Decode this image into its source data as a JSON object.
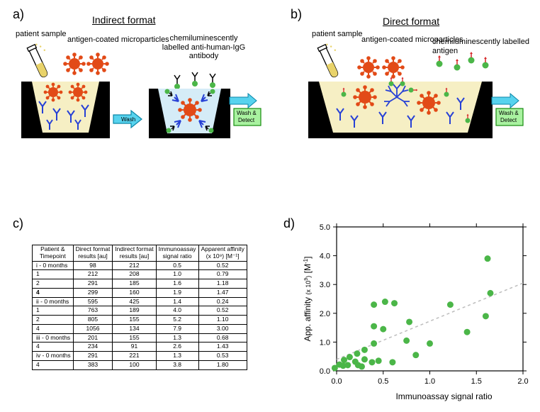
{
  "labels": {
    "a": "a)",
    "b": "b)",
    "c": "c)",
    "d": "d)",
    "indirect_title": "Indirect format",
    "direct_title": "Direct format",
    "patient_sample": "patient\nsample",
    "antigen_mp": "antigen-coated\nmicroparticles",
    "chemi_igg": "chemiluminescently\nlabelled\nanti-human-IgG\nantibody",
    "chemi_antigen": "chemiluminescently\nlabelled antigen",
    "wash": "Wash",
    "wash_detect": "Wash &\nDetect"
  },
  "colors": {
    "well_outline": "#000000",
    "well_fill": "#f6efc4",
    "well_fill_blue": "#d5ecf7",
    "tube_fill": "#e9d36a",
    "virus": "#e24a17",
    "virus_spike": "#e24a17",
    "antibody": "#2741d6",
    "green_dot": "#4bb648",
    "green_box": "#a9f2a0",
    "green_box_border": "#168b0e",
    "cyan": "#57d3ee",
    "scatter_point": "#4bb648",
    "scatter_fit": "#bdbdbd",
    "red_tip": "#d62728"
  },
  "table": {
    "headers": [
      "Patient &\nTimepoint",
      "Direct format\nresults  [au]",
      "Indirect format\nresults  [au]",
      "Immunoassay\nsignal ratio",
      "Apparent affinity\n(x 10⁹)  [M⁻¹]"
    ],
    "rows": [
      {
        "cells": [
          "i - 0 months",
          "98",
          "212",
          "0.5",
          "0.52"
        ],
        "leftbold": false
      },
      {
        "cells": [
          "1",
          "212",
          "208",
          "1.0",
          "0.79"
        ],
        "leftbold": false
      },
      {
        "cells": [
          "2",
          "291",
          "185",
          "1.6",
          "1.18"
        ],
        "leftbold": false
      },
      {
        "cells": [
          "4",
          "299",
          "160",
          "1.9",
          "1.47"
        ],
        "leftbold": true
      },
      {
        "cells": [
          "ii - 0 months",
          "595",
          "425",
          "1.4",
          "0.24"
        ],
        "leftbold": false
      },
      {
        "cells": [
          "1",
          "763",
          "189",
          "4.0",
          "0.52"
        ],
        "leftbold": false
      },
      {
        "cells": [
          "2",
          "805",
          "155",
          "5.2",
          "1.10"
        ],
        "leftbold": false
      },
      {
        "cells": [
          "4",
          "1056",
          "134",
          "7.9",
          "3.00"
        ],
        "leftbold": false
      },
      {
        "cells": [
          "iii - 0 months",
          "201",
          "155",
          "1.3",
          "0.68"
        ],
        "leftbold": false
      },
      {
        "cells": [
          "4",
          "234",
          "91",
          "2.6",
          "1.43"
        ],
        "leftbold": false
      },
      {
        "cells": [
          "iv - 0 months",
          "291",
          "221",
          "1.3",
          "0.53"
        ],
        "leftbold": false
      },
      {
        "cells": [
          "4",
          "383",
          "100",
          "3.8",
          "1.80"
        ],
        "leftbold": false
      }
    ]
  },
  "scatter": {
    "type": "scatter",
    "xlabel": "Immunoassay signal ratio",
    "ylabel": "App. affinity (x 10⁹)   [M⁻¹]",
    "xlim": [
      0.0,
      2.0
    ],
    "ylim": [
      0.0,
      5.0
    ],
    "xticks": [
      0.0,
      0.5,
      1.0,
      1.5,
      2.0
    ],
    "yticks": [
      0.0,
      1.0,
      2.0,
      3.0,
      4.0,
      5.0
    ],
    "xlabel_fontsize": 12,
    "ylabel_fontsize": 12,
    "tick_fontsize": 11,
    "point_color": "#4bb648",
    "point_radius": 4.5,
    "fit_color": "#bdbdbd",
    "fit_dash": "4,4",
    "fit": {
      "x0": 0.0,
      "y0": 0.4,
      "x1": 2.0,
      "y1": 3.05
    },
    "background": "#ffffff",
    "points": [
      {
        "x": -0.02,
        "y": 0.1
      },
      {
        "x": 0.03,
        "y": 0.22
      },
      {
        "x": 0.08,
        "y": 0.38
      },
      {
        "x": 0.07,
        "y": 0.18
      },
      {
        "x": 0.12,
        "y": 0.2
      },
      {
        "x": 0.14,
        "y": 0.48
      },
      {
        "x": 0.2,
        "y": 0.32
      },
      {
        "x": 0.22,
        "y": 0.6
      },
      {
        "x": 0.23,
        "y": 0.2
      },
      {
        "x": 0.27,
        "y": 0.15
      },
      {
        "x": 0.3,
        "y": 0.4
      },
      {
        "x": 0.3,
        "y": 0.73
      },
      {
        "x": 0.38,
        "y": 0.3
      },
      {
        "x": 0.4,
        "y": 0.95
      },
      {
        "x": 0.4,
        "y": 1.55
      },
      {
        "x": 0.4,
        "y": 2.3
      },
      {
        "x": 0.45,
        "y": 0.35
      },
      {
        "x": 0.5,
        "y": 1.45
      },
      {
        "x": 0.52,
        "y": 2.4
      },
      {
        "x": 0.6,
        "y": 0.3
      },
      {
        "x": 0.62,
        "y": 2.35
      },
      {
        "x": 0.75,
        "y": 1.05
      },
      {
        "x": 0.78,
        "y": 1.7
      },
      {
        "x": 0.85,
        "y": 0.55
      },
      {
        "x": 1.0,
        "y": 0.95
      },
      {
        "x": 1.22,
        "y": 2.3
      },
      {
        "x": 1.4,
        "y": 1.35
      },
      {
        "x": 1.6,
        "y": 1.9
      },
      {
        "x": 1.65,
        "y": 2.7
      },
      {
        "x": 1.62,
        "y": 3.9
      }
    ]
  }
}
